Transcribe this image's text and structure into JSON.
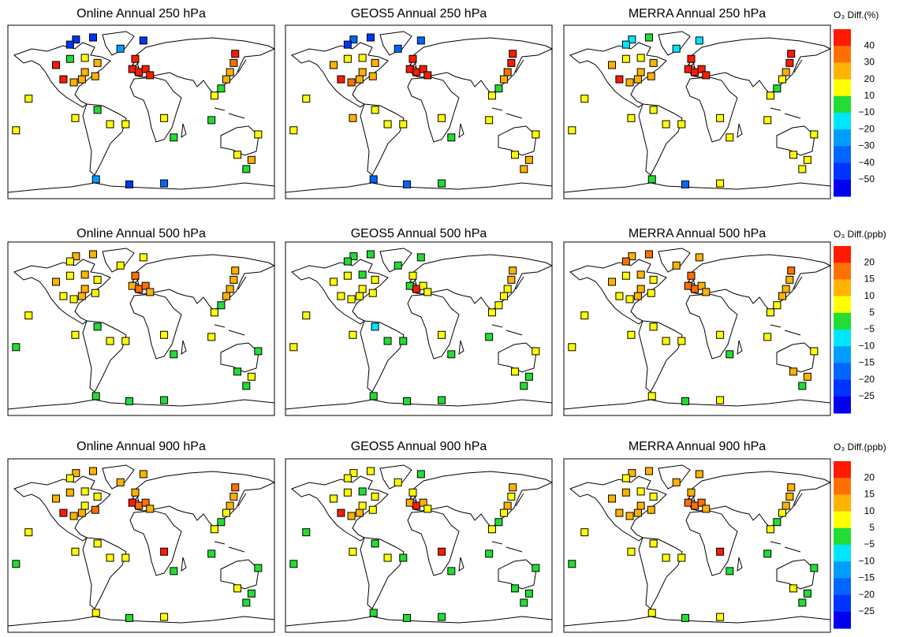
{
  "stations": {
    "xlim": [
      -180,
      180
    ],
    "ylim": [
      -85,
      85
    ],
    "lon": [
      -65,
      -88,
      -96,
      -28,
      3,
      -115,
      -96,
      -76,
      -59,
      -105,
      -91,
      -80,
      -62,
      -76,
      -8,
      -12,
      -3,
      6,
      12,
      127,
      125,
      120,
      115,
      108,
      99,
      -152,
      -89,
      -59,
      -42,
      -21,
      31,
      -169,
      44,
      95,
      158,
      130,
      149,
      142,
      -61,
      -16,
      31
    ],
    "lat": [
      73,
      71,
      66,
      62,
      70,
      46,
      52,
      53,
      48,
      32,
      29,
      32,
      35,
      39,
      52,
      42,
      39,
      42,
      36,
      57,
      48,
      39,
      32,
      23,
      16,
      13,
      -6,
      2,
      -12,
      -12,
      -6,
      -18,
      -25,
      -8,
      -22,
      -42,
      -47,
      -56,
      -66,
      -71,
      -70
    ]
  },
  "chart_data": [
    {
      "type": "map",
      "colorbar": {
        "title": "O₃ Diff.(%)",
        "colors": [
          "#ff1a00",
          "#ff7000",
          "#ffb300",
          "#ffff00",
          "#22dd33",
          "#00e5ff",
          "#009cff",
          "#0066ff",
          "#0033ff",
          "#0000ee"
        ],
        "ticks": [
          40,
          30,
          20,
          10,
          {
            "value": -10,
            "label": "−10"
          },
          {
            "value": -20,
            "label": "−20"
          },
          {
            "value": -30,
            "label": "−30"
          },
          {
            "value": -40,
            "label": "−40"
          },
          {
            "value": -50,
            "label": "−50"
          }
        ]
      },
      "panels": [
        {
          "title": "Online Annual 250 hPa",
          "values": [
            -45,
            -45,
            -45,
            -25,
            -45,
            45,
            0,
            15,
            25,
            45,
            25,
            25,
            25,
            25,
            45,
            45,
            45,
            45,
            45,
            45,
            35,
            25,
            25,
            0,
            15,
            15,
            15,
            0,
            15,
            15,
            15,
            15,
            0,
            0,
            15,
            15,
            25,
            0,
            -25,
            -45,
            -35
          ]
        },
        {
          "title": "GEOS5 Annual 250 hPa",
          "values": [
            -45,
            -35,
            -45,
            -35,
            -35,
            25,
            15,
            15,
            25,
            45,
            35,
            25,
            25,
            25,
            45,
            45,
            45,
            45,
            45,
            45,
            45,
            35,
            25,
            0,
            15,
            15,
            25,
            15,
            15,
            15,
            15,
            15,
            0,
            15,
            15,
            15,
            25,
            25,
            -35,
            -35,
            0
          ]
        },
        {
          "title": "MERRA Annual 250 hPa",
          "values": [
            0,
            -15,
            -15,
            -15,
            -15,
            25,
            15,
            15,
            25,
            45,
            25,
            25,
            25,
            25,
            45,
            45,
            45,
            45,
            45,
            45,
            45,
            25,
            15,
            0,
            15,
            15,
            15,
            15,
            15,
            15,
            15,
            15,
            15,
            15,
            15,
            15,
            15,
            15,
            0,
            -35,
            15
          ]
        }
      ]
    },
    {
      "type": "map",
      "colorbar": {
        "title": "O₃ Diff.(ppb)",
        "colors": [
          "#ff1a00",
          "#ff7000",
          "#ffb300",
          "#ffff00",
          "#22dd33",
          "#00e5ff",
          "#009cff",
          "#0066ff",
          "#0033ff",
          "#0000ee"
        ],
        "ticks": [
          20,
          15,
          10,
          5,
          {
            "value": -5,
            "label": "−5"
          },
          {
            "value": -10,
            "label": "−10"
          },
          {
            "value": -15,
            "label": "−15"
          },
          {
            "value": -20,
            "label": "−20"
          },
          {
            "value": -25,
            "label": "−25"
          }
        ]
      },
      "panels": [
        {
          "title": "Online Annual 500 hPa",
          "values": [
            12,
            12,
            7,
            7,
            7,
            12,
            7,
            12,
            7,
            7,
            7,
            12,
            7,
            12,
            17,
            12,
            17,
            17,
            12,
            12,
            12,
            12,
            12,
            0,
            7,
            7,
            7,
            0,
            7,
            7,
            7,
            0,
            0,
            7,
            0,
            0,
            7,
            0,
            0,
            0,
            0
          ]
        },
        {
          "title": "GEOS5 Annual 500 hPa",
          "values": [
            0,
            0,
            0,
            0,
            0,
            7,
            7,
            0,
            7,
            7,
            7,
            7,
            7,
            7,
            7,
            0,
            22,
            7,
            7,
            12,
            12,
            7,
            7,
            7,
            7,
            7,
            7,
            -7,
            0,
            0,
            7,
            7,
            0,
            0,
            7,
            7,
            0,
            0,
            0,
            0,
            0
          ]
        },
        {
          "title": "MERRA Annual 500 hPa",
          "values": [
            17,
            12,
            17,
            12,
            12,
            12,
            7,
            12,
            7,
            7,
            7,
            12,
            7,
            12,
            17,
            17,
            17,
            12,
            12,
            17,
            12,
            12,
            12,
            7,
            7,
            7,
            7,
            7,
            7,
            7,
            7,
            7,
            0,
            7,
            7,
            12,
            12,
            0,
            7,
            0,
            7
          ]
        }
      ]
    },
    {
      "type": "map",
      "colorbar": {
        "title": "O₃ Diff.(ppb)",
        "colors": [
          "#ff1a00",
          "#ff7000",
          "#ffb300",
          "#ffff00",
          "#22dd33",
          "#00e5ff",
          "#009cff",
          "#0066ff",
          "#0033ff",
          "#0000ee"
        ],
        "ticks": [
          20,
          15,
          10,
          5,
          {
            "value": -5,
            "label": "−5"
          },
          {
            "value": -10,
            "label": "−10"
          },
          {
            "value": -15,
            "label": "−15"
          },
          {
            "value": -20,
            "label": "−20"
          },
          {
            "value": -25,
            "label": "−25"
          }
        ]
      },
      "panels": [
        {
          "title": "Online Annual 900 hPa",
          "values": [
            12,
            12,
            7,
            12,
            12,
            12,
            12,
            7,
            7,
            22,
            12,
            12,
            17,
            7,
            12,
            22,
            17,
            17,
            12,
            17,
            12,
            12,
            7,
            0,
            7,
            7,
            7,
            7,
            7,
            7,
            22,
            0,
            0,
            0,
            0,
            7,
            0,
            0,
            7,
            0,
            7
          ]
        },
        {
          "title": "GEOS5 Annual 900 hPa",
          "values": [
            7,
            7,
            7,
            7,
            0,
            7,
            7,
            0,
            7,
            22,
            12,
            12,
            7,
            7,
            7,
            12,
            22,
            12,
            7,
            12,
            7,
            12,
            7,
            0,
            7,
            0,
            7,
            0,
            7,
            0,
            22,
            0,
            0,
            0,
            0,
            0,
            0,
            0,
            0,
            0,
            0
          ]
        },
        {
          "title": "MERRA Annual 900 hPa",
          "values": [
            12,
            12,
            7,
            12,
            12,
            12,
            12,
            7,
            7,
            12,
            12,
            12,
            12,
            12,
            12,
            17,
            17,
            17,
            12,
            12,
            12,
            12,
            7,
            0,
            7,
            7,
            7,
            7,
            7,
            7,
            22,
            0,
            0,
            0,
            0,
            7,
            0,
            0,
            7,
            0,
            7
          ]
        }
      ]
    }
  ]
}
